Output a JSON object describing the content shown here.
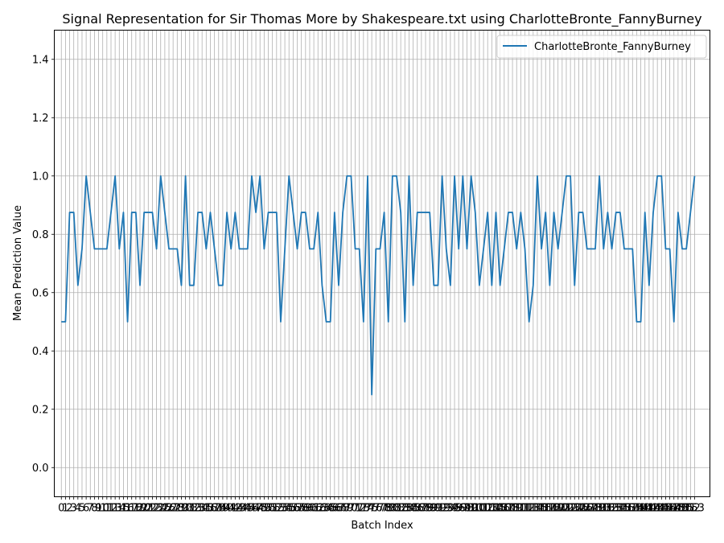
{
  "chart_data": {
    "type": "line",
    "title": "Signal Representation for Sir Thomas More by Shakespeare.txt using CharlotteBronte_FannyBurney",
    "xlabel": "Batch Index",
    "ylabel": "Mean Prediction Value",
    "ylim": [
      -0.1,
      1.5
    ],
    "yticks": [
      0.0,
      0.2,
      0.4,
      0.6,
      0.8,
      1.0,
      1.2,
      1.4
    ],
    "xlim": [
      -1.7,
      156.7
    ],
    "grid": true,
    "legend": "top-right",
    "series": [
      {
        "name": "CharlotteBronte_FannyBurney",
        "color": "#1f77b4",
        "values": [
          0.5,
          0.5,
          0.875,
          0.875,
          0.625,
          0.75,
          1.0,
          0.875,
          0.75,
          0.75,
          0.75,
          0.75,
          0.875,
          1.0,
          0.75,
          0.875,
          0.5,
          0.875,
          0.875,
          0.625,
          0.875,
          0.875,
          0.875,
          0.75,
          1.0,
          0.875,
          0.75,
          0.75,
          0.75,
          0.625,
          1.0,
          0.625,
          0.625,
          0.875,
          0.875,
          0.75,
          0.875,
          0.75,
          0.625,
          0.625,
          0.875,
          0.75,
          0.875,
          0.75,
          0.75,
          0.75,
          1.0,
          0.875,
          1.0,
          0.75,
          0.875,
          0.875,
          0.875,
          0.5,
          0.75,
          1.0,
          0.875,
          0.75,
          0.875,
          0.875,
          0.75,
          0.75,
          0.875,
          0.625,
          0.5,
          0.5,
          0.875,
          0.625,
          0.875,
          1.0,
          1.0,
          0.75,
          0.75,
          0.5,
          1.0,
          0.25,
          0.75,
          0.75,
          0.875,
          0.5,
          1.0,
          1.0,
          0.875,
          0.5,
          1.0,
          0.625,
          0.875,
          0.875,
          0.875,
          0.875,
          0.625,
          0.625,
          1.0,
          0.75,
          0.625,
          1.0,
          0.75,
          1.0,
          0.75,
          1.0,
          0.875,
          0.625,
          0.75,
          0.875,
          0.625,
          0.875,
          0.625,
          0.75,
          0.875,
          0.875,
          0.75,
          0.875,
          0.75,
          0.5,
          0.625,
          1.0,
          0.75,
          0.875,
          0.625,
          0.875,
          0.75,
          0.875,
          1.0,
          1.0,
          0.625,
          0.875,
          0.875,
          0.75,
          0.75,
          0.75,
          1.0,
          0.75,
          0.875,
          0.75,
          0.875,
          0.875,
          0.75,
          0.75,
          0.75,
          0.5,
          0.5,
          0.875,
          0.625,
          0.875,
          1.0,
          1.0,
          0.75,
          0.75,
          0.5,
          0.875,
          0.75,
          0.75,
          0.875,
          1.0
        ]
      }
    ]
  }
}
